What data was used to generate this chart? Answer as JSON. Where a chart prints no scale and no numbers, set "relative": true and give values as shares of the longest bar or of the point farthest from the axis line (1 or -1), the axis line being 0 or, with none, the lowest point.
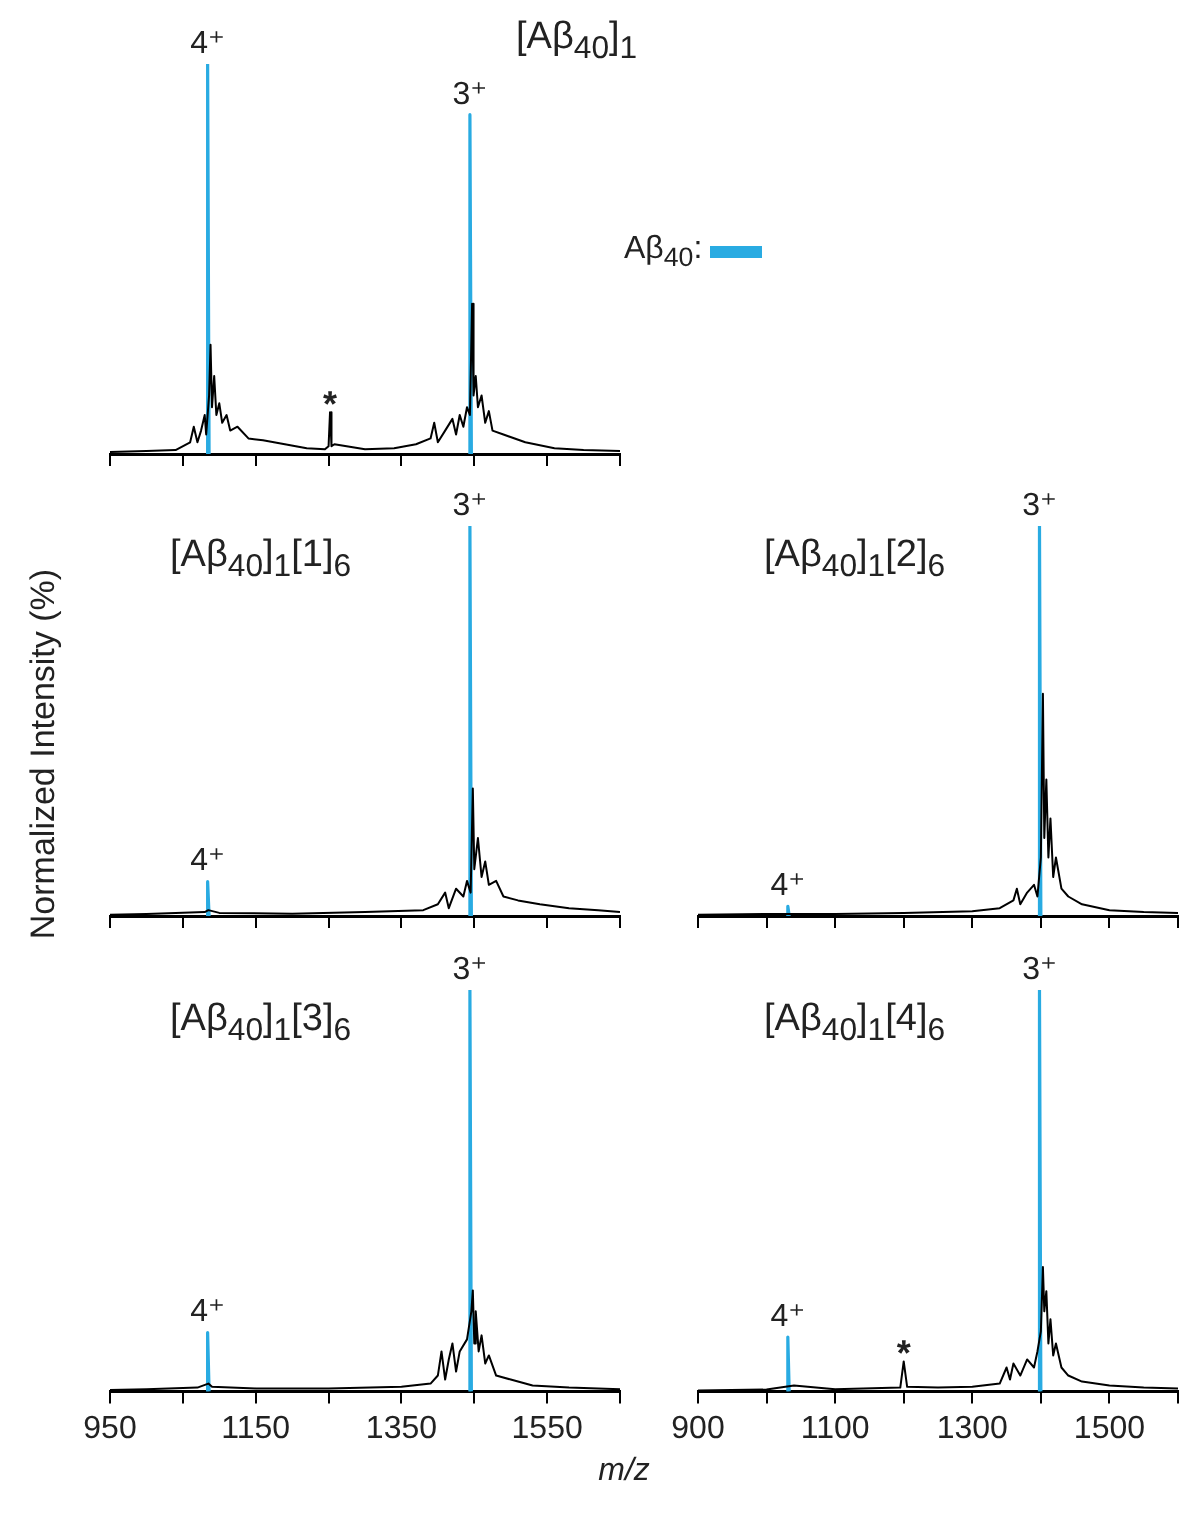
{
  "chart_data": [
    {
      "type": "line",
      "title": "[Aβ$_{40}$]$_{1}$",
      "relative": true,
      "legend": "right",
      "tick_labels": false,
      "xlim": [
        950,
        1650
      ],
      "xticks": [
        {
          "value": 950,
          "label": null
        },
        {
          "value": 1050,
          "label": null
        },
        {
          "value": 1150,
          "label": null
        },
        {
          "value": 1250,
          "label": null
        },
        {
          "value": 1350,
          "label": null
        },
        {
          "value": 1450,
          "label": null
        },
        {
          "value": 1550,
          "label": null
        },
        {
          "value": 1650,
          "label": null
        }
      ],
      "annotations": [
        {
          "text": "4⁺",
          "x": 1084,
          "y": 1
        },
        {
          "text": "3⁺",
          "x": 1444,
          "y": 0.87
        },
        {
          "text": "*",
          "x": 1252,
          "y": 0.107
        }
      ],
      "series": [
        {
          "color": "#000000",
          "x": [
            950,
            1000,
            1040,
            1060,
            1065,
            1070,
            1075,
            1080,
            1082,
            1086,
            1088,
            1090,
            1093,
            1096,
            1100,
            1104,
            1110,
            1115,
            1125,
            1140,
            1160,
            1190,
            1220,
            1245,
            1250,
            1252,
            1254,
            1258,
            1300,
            1340,
            1370,
            1390,
            1395,
            1400,
            1410,
            1420,
            1425,
            1430,
            1435,
            1440,
            1444,
            1447,
            1449,
            1452,
            1455,
            1460,
            1465,
            1470,
            1475,
            1490,
            1520,
            1560,
            1600,
            1650
          ],
          "values": [
            0.005,
            0.008,
            0.01,
            0.03,
            0.07,
            0.03,
            0.06,
            0.1,
            0.05,
            0.15,
            0.28,
            0.12,
            0.2,
            0.1,
            0.13,
            0.08,
            0.1,
            0.06,
            0.07,
            0.04,
            0.035,
            0.025,
            0.015,
            0.012,
            0.02,
            0.107,
            0.02,
            0.025,
            0.012,
            0.015,
            0.025,
            0.04,
            0.08,
            0.03,
            0.06,
            0.09,
            0.05,
            0.1,
            0.07,
            0.12,
            0.1,
            0.385,
            0.15,
            0.2,
            0.12,
            0.15,
            0.08,
            0.11,
            0.06,
            0.05,
            0.03,
            0.015,
            0.01,
            0.008
          ]
        },
        {
          "name": "Aβ$_{40}$:",
          "color": "#29abe2",
          "x": [
            1082,
            1084,
            1086,
            1260,
            1442,
            1444,
            1446
          ],
          "values": [
            0,
            1,
            0,
            null,
            0,
            0.87,
            0
          ]
        }
      ]
    },
    {
      "type": "line",
      "title": "[Aβ$_{40}$]$_{1}$[1]$_{6}$",
      "ylabel": "Normalized Intensity (%)",
      "relative": true,
      "tick_labels": false,
      "xlim": [
        950,
        1650
      ],
      "xticks": [
        {
          "value": 950,
          "label": null
        },
        {
          "value": 1050,
          "label": null
        },
        {
          "value": 1150,
          "label": null
        },
        {
          "value": 1250,
          "label": null
        },
        {
          "value": 1350,
          "label": null
        },
        {
          "value": 1450,
          "label": null
        },
        {
          "value": 1550,
          "label": null
        },
        {
          "value": 1650,
          "label": null
        }
      ],
      "annotations": [
        {
          "text": "4⁺",
          "x": 1084,
          "y": 0.088
        },
        {
          "text": "3⁺",
          "x": 1444,
          "y": 1
        }
      ],
      "series": [
        {
          "color": "#000000",
          "x": [
            950,
            1000,
            1080,
            1085,
            1100,
            1200,
            1300,
            1380,
            1400,
            1410,
            1415,
            1425,
            1435,
            1440,
            1445,
            1448,
            1450,
            1455,
            1460,
            1465,
            1470,
            1480,
            1490,
            1510,
            1540,
            1580,
            1620,
            1650
          ],
          "values": [
            0.003,
            0.005,
            0.01,
            0.015,
            0.008,
            0.006,
            0.01,
            0.015,
            0.03,
            0.06,
            0.02,
            0.07,
            0.05,
            0.09,
            0.06,
            0.327,
            0.12,
            0.2,
            0.1,
            0.14,
            0.08,
            0.09,
            0.05,
            0.04,
            0.03,
            0.02,
            0.015,
            0.01
          ]
        },
        {
          "color": "#29abe2",
          "x": [
            1082,
            1084,
            1086,
            1260,
            1442,
            1444,
            1446
          ],
          "values": [
            0,
            0.088,
            0,
            null,
            0,
            1,
            0
          ]
        }
      ]
    },
    {
      "type": "line",
      "title": "[Aβ$_{40}$]$_{1}$[2]$_{6}$",
      "relative": true,
      "tick_labels": false,
      "xlim": [
        900,
        1600
      ],
      "xticks": [
        {
          "value": 900,
          "label": null
        },
        {
          "value": 1000,
          "label": null
        },
        {
          "value": 1100,
          "label": null
        },
        {
          "value": 1200,
          "label": null
        },
        {
          "value": 1300,
          "label": null
        },
        {
          "value": 1400,
          "label": null
        },
        {
          "value": 1500,
          "label": null
        },
        {
          "value": 1600,
          "label": null
        }
      ],
      "annotations": [
        {
          "text": "4⁺",
          "x": 1031,
          "y": 0.025
        },
        {
          "text": "3⁺",
          "x": 1398,
          "y": 1
        }
      ],
      "series": [
        {
          "color": "#000000",
          "x": [
            900,
            1000,
            1100,
            1200,
            1300,
            1340,
            1360,
            1365,
            1370,
            1380,
            1390,
            1395,
            1400,
            1403,
            1405,
            1408,
            1411,
            1414,
            1418,
            1422,
            1430,
            1440,
            1460,
            1500,
            1550,
            1600
          ],
          "values": [
            0.003,
            0.005,
            0.005,
            0.008,
            0.012,
            0.02,
            0.04,
            0.07,
            0.03,
            0.06,
            0.08,
            0.05,
            0.15,
            0.57,
            0.2,
            0.35,
            0.15,
            0.25,
            0.1,
            0.15,
            0.07,
            0.05,
            0.03,
            0.015,
            0.01,
            0.008
          ]
        },
        {
          "color": "#29abe2",
          "x": [
            1029,
            1031,
            1033,
            1200,
            1396,
            1398,
            1400
          ],
          "values": [
            0,
            0.025,
            0,
            null,
            0,
            1,
            0
          ]
        }
      ]
    },
    {
      "type": "line",
      "title": "[Aβ$_{40}$]$_{1}$[3]$_{6}$",
      "xlabel": "m/z",
      "relative": true,
      "xlim": [
        950,
        1650
      ],
      "xticks": [
        950,
        {
          "value": 1050,
          "label": null
        },
        1150,
        {
          "value": 1250,
          "label": null
        },
        1350,
        {
          "value": 1450,
          "label": null
        },
        1550,
        {
          "value": 1650,
          "label": null
        }
      ],
      "annotations": [
        {
          "text": "4⁺",
          "x": 1084,
          "y": 0.147
        },
        {
          "text": "3⁺",
          "x": 1444,
          "y": 1
        }
      ],
      "series": [
        {
          "color": "#000000",
          "x": [
            950,
            1000,
            1070,
            1085,
            1090,
            1150,
            1250,
            1350,
            1390,
            1400,
            1405,
            1410,
            1415,
            1420,
            1425,
            1430,
            1440,
            1446,
            1448,
            1450,
            1452,
            1456,
            1460,
            1465,
            1470,
            1480,
            1500,
            1530,
            1580,
            1650
          ],
          "values": [
            0.004,
            0.006,
            0.01,
            0.02,
            0.012,
            0.008,
            0.008,
            0.012,
            0.02,
            0.04,
            0.1,
            0.03,
            0.08,
            0.12,
            0.05,
            0.1,
            0.13,
            0.2,
            0.252,
            0.12,
            0.2,
            0.1,
            0.14,
            0.07,
            0.09,
            0.04,
            0.03,
            0.015,
            0.01,
            0.006
          ]
        },
        {
          "color": "#29abe2",
          "x": [
            1082,
            1084,
            1086,
            1260,
            1442,
            1444,
            1446
          ],
          "values": [
            0,
            0.147,
            0,
            null,
            0,
            1,
            0
          ]
        }
      ]
    },
    {
      "type": "line",
      "title": "[Aβ$_{40}$]$_{1}$[4]$_{6}$",
      "relative": true,
      "xlim": [
        900,
        1600
      ],
      "xticks": [
        900,
        {
          "value": 1000,
          "label": null
        },
        1100,
        {
          "value": 1200,
          "label": null
        },
        1300,
        {
          "value": 1400,
          "label": null
        },
        1500,
        {
          "value": 1600,
          "label": null
        }
      ],
      "annotations": [
        {
          "text": "4⁺",
          "x": 1031,
          "y": 0.136
        },
        {
          "text": "3⁺",
          "x": 1398,
          "y": 1
        },
        {
          "text": "*",
          "x": 1200,
          "y": 0.075
        }
      ],
      "series": [
        {
          "color": "#000000",
          "x": [
            900,
            1000,
            1040,
            1100,
            1195,
            1200,
            1205,
            1250,
            1300,
            1340,
            1350,
            1355,
            1360,
            1370,
            1380,
            1390,
            1395,
            1400,
            1403,
            1405,
            1408,
            1411,
            1414,
            1418,
            1422,
            1430,
            1440,
            1460,
            1500,
            1550,
            1600
          ],
          "values": [
            0.003,
            0.005,
            0.015,
            0.006,
            0.01,
            0.075,
            0.012,
            0.01,
            0.012,
            0.02,
            0.06,
            0.03,
            0.07,
            0.04,
            0.08,
            0.06,
            0.1,
            0.15,
            0.31,
            0.2,
            0.25,
            0.12,
            0.18,
            0.09,
            0.12,
            0.06,
            0.04,
            0.025,
            0.015,
            0.01,
            0.008
          ]
        },
        {
          "color": "#29abe2",
          "x": [
            1029,
            1031,
            1033,
            1200,
            1396,
            1398,
            1400
          ],
          "values": [
            0,
            0.136,
            0,
            null,
            0,
            1,
            0
          ]
        }
      ]
    }
  ]
}
